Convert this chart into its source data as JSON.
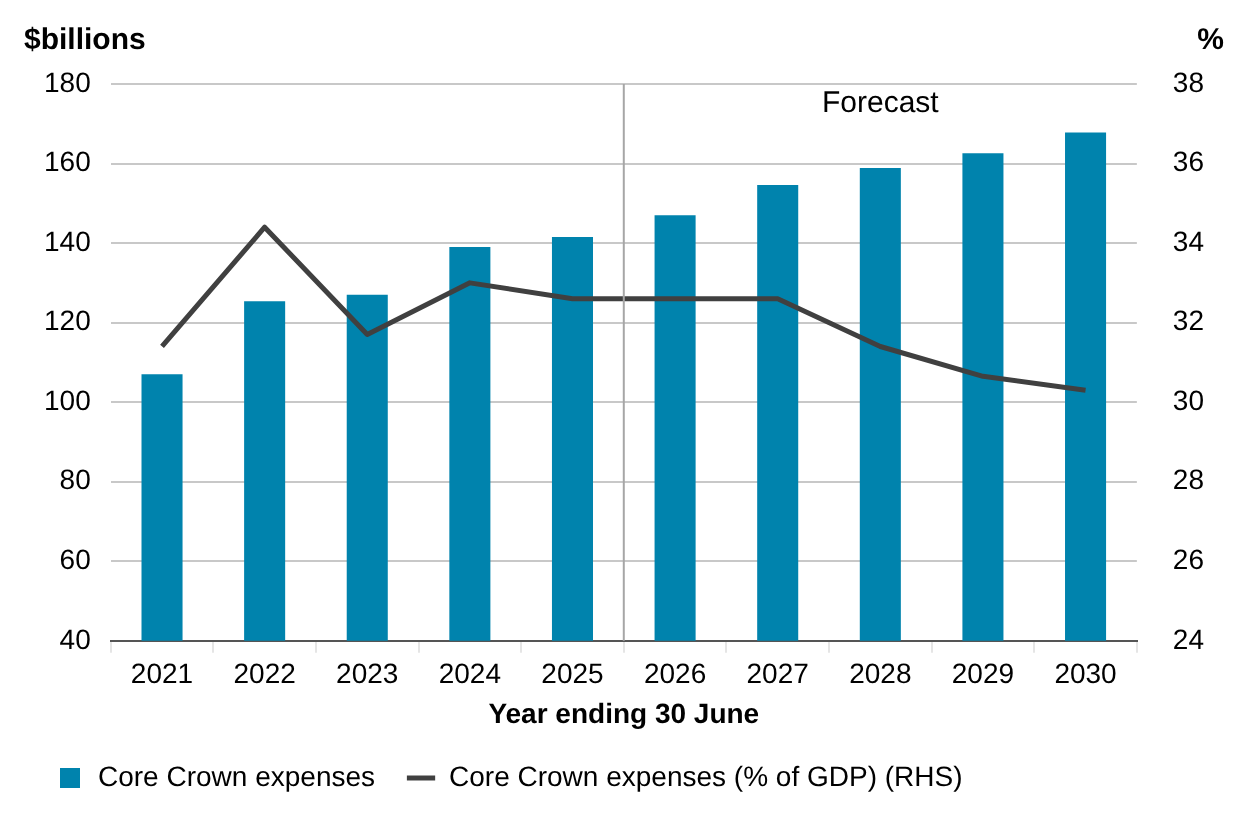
{
  "chart_data": {
    "type": "bar",
    "xlabel": "Year ending 30 June",
    "ylabel": "$billions",
    "y2label": "%",
    "x": [
      2021,
      2022,
      2023,
      2024,
      2025,
      2026,
      2027,
      2028,
      2029,
      2030
    ],
    "xlim": [
      2020.5,
      2030.5
    ],
    "xticks": [
      2021,
      2022,
      2023,
      2024,
      2025,
      2026,
      2027,
      2028,
      2029,
      2030
    ],
    "series": [
      {
        "name": "Core Crown expenses",
        "color": "#0083ad",
        "values": [
          107,
          125.4,
          127,
          139,
          141.5,
          147,
          154.6,
          158.9,
          162.6,
          167.8
        ]
      },
      {
        "name": "Core Crown expenses (% of GDP) (RHS)",
        "type": "line",
        "axis": "y2",
        "color": "#404040",
        "values": [
          31.4,
          34.4,
          31.7,
          33.0,
          32.6,
          32.6,
          32.6,
          31.4,
          30.65,
          30.3
        ]
      }
    ],
    "ylim": [
      40,
      180
    ],
    "yticks": [
      40,
      60,
      80,
      100,
      120,
      140,
      160,
      180
    ],
    "y2lim": [
      24,
      38
    ],
    "y2ticks": [
      24,
      26,
      28,
      30,
      32,
      34,
      36,
      38
    ],
    "ref_lines": [
      {
        "axis": "x",
        "value": 2025.5,
        "color": "#a6a6a6"
      }
    ],
    "annotations": [
      "Forecast"
    ],
    "grid": "y",
    "legend": "bottom"
  }
}
